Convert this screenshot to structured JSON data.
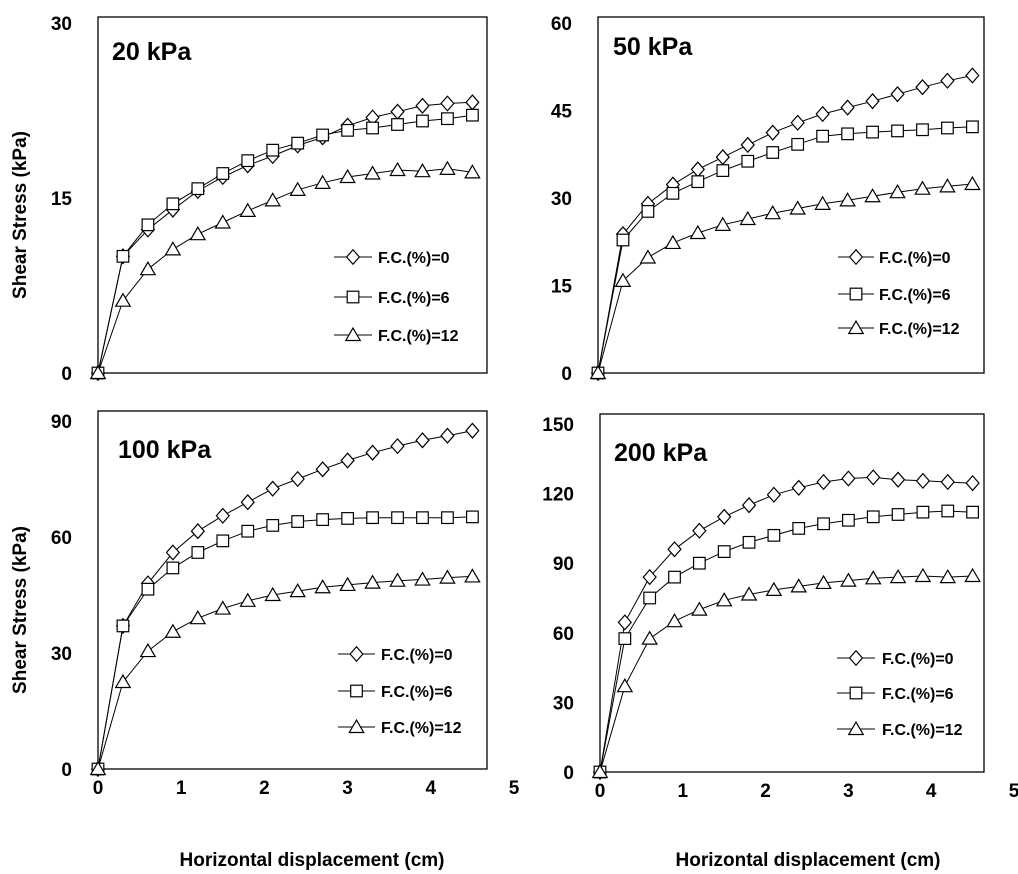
{
  "figure": {
    "ylabel": "Shear Stress (kPa)",
    "xlabel": "Horizontal displacement (cm)",
    "xticks": [
      "0",
      "1",
      "2",
      "3",
      "4",
      "5"
    ]
  },
  "chart_data": [
    {
      "type": "line",
      "title": "20 kPa",
      "ylabel": "Shear Stress (kPa)",
      "xlabel": "Horizontal displacement (cm)",
      "xlim": [
        0,
        5
      ],
      "ylim": [
        0,
        30
      ],
      "yticks": [
        0,
        15,
        30
      ],
      "ytick_labels": [
        "0",
        "15",
        "30"
      ],
      "x": [
        0,
        0.3,
        0.6,
        0.9,
        1.2,
        1.5,
        1.8,
        2.1,
        2.4,
        2.7,
        3.0,
        3.3,
        3.6,
        3.9,
        4.2,
        4.5
      ],
      "series": [
        {
          "name": "F.C.(%)=0",
          "marker": "diamond",
          "values": [
            0,
            10.0,
            12.3,
            14.0,
            15.6,
            16.8,
            17.8,
            18.6,
            19.5,
            20.2,
            21.2,
            21.9,
            22.4,
            22.9,
            23.1,
            23.2
          ]
        },
        {
          "name": "F.C.(%)=6",
          "marker": "square",
          "values": [
            0,
            10.0,
            12.7,
            14.5,
            15.8,
            17.1,
            18.2,
            19.1,
            19.7,
            20.4,
            20.8,
            21.0,
            21.3,
            21.6,
            21.8,
            22.1
          ]
        },
        {
          "name": "F.C.(%)=12",
          "marker": "triangle",
          "values": [
            0,
            6.2,
            8.9,
            10.6,
            11.9,
            12.9,
            13.9,
            14.8,
            15.7,
            16.3,
            16.8,
            17.1,
            17.4,
            17.3,
            17.5,
            17.2
          ]
        }
      ],
      "legend_position": "center-right",
      "grid": false
    },
    {
      "type": "line",
      "title": "50 kPa",
      "ylabel": "",
      "xlabel": "",
      "xlim": [
        0,
        5
      ],
      "ylim": [
        0,
        60
      ],
      "yticks": [
        0,
        15,
        30,
        45,
        60
      ],
      "ytick_labels": [
        "0",
        "15",
        "30",
        "45",
        "60"
      ],
      "x": [
        0,
        0.3,
        0.6,
        0.9,
        1.2,
        1.5,
        1.8,
        2.1,
        2.4,
        2.7,
        3.0,
        3.3,
        3.6,
        3.9,
        4.2,
        4.5
      ],
      "series": [
        {
          "name": "F.C.(%)=0",
          "marker": "diamond",
          "values": [
            0,
            23.8,
            29.0,
            32.3,
            34.9,
            37.0,
            39.1,
            41.2,
            42.9,
            44.4,
            45.5,
            46.6,
            47.8,
            49.0,
            50.1,
            51.0
          ]
        },
        {
          "name": "F.C.(%)=6",
          "marker": "square",
          "values": [
            0,
            22.8,
            27.7,
            30.8,
            32.8,
            34.7,
            36.3,
            37.8,
            39.2,
            40.6,
            41.0,
            41.3,
            41.5,
            41.7,
            42.0,
            42.2
          ]
        },
        {
          "name": "F.C.(%)=12",
          "marker": "triangle",
          "values": [
            0,
            15.8,
            19.8,
            22.3,
            24.0,
            25.4,
            26.4,
            27.4,
            28.2,
            29.0,
            29.6,
            30.3,
            31.0,
            31.6,
            32.0,
            32.4
          ]
        }
      ],
      "legend_position": "center-right",
      "grid": false
    },
    {
      "type": "line",
      "title": "100 kPa",
      "ylabel": "Shear Stress (kPa)",
      "xlabel": "Horizontal displacement (cm)",
      "xlim": [
        0,
        5
      ],
      "ylim": [
        0,
        90
      ],
      "yticks": [
        0,
        30,
        60,
        90
      ],
      "ytick_labels": [
        "0",
        "30",
        "60",
        "90"
      ],
      "x": [
        0,
        0.3,
        0.6,
        0.9,
        1.2,
        1.5,
        1.8,
        2.1,
        2.4,
        2.7,
        3.0,
        3.3,
        3.6,
        3.9,
        4.2,
        4.5
      ],
      "series": [
        {
          "name": "F.C.(%)=0",
          "marker": "diamond",
          "values": [
            0,
            37.0,
            48.0,
            56.0,
            61.5,
            65.5,
            69.0,
            72.5,
            75.0,
            77.5,
            79.8,
            81.8,
            83.5,
            85.0,
            86.2,
            87.5
          ]
        },
        {
          "name": "F.C.(%)=6",
          "marker": "square",
          "values": [
            0,
            37.0,
            46.5,
            52.0,
            56.0,
            59.0,
            61.5,
            63.0,
            64.0,
            64.5,
            64.8,
            65.0,
            65.0,
            65.0,
            65.0,
            65.2
          ]
        },
        {
          "name": "F.C.(%)=12",
          "marker": "triangle",
          "values": [
            0,
            22.5,
            30.5,
            35.5,
            39.0,
            41.5,
            43.5,
            45.0,
            46.0,
            47.0,
            47.6,
            48.2,
            48.7,
            49.0,
            49.5,
            49.8
          ]
        }
      ],
      "legend_position": "bottom-right",
      "grid": false
    },
    {
      "type": "line",
      "title": "200 kPa",
      "ylabel": "",
      "xlabel": "Horizontal displacement (cm)",
      "xlim": [
        0,
        5
      ],
      "ylim": [
        0,
        150
      ],
      "yticks": [
        0,
        30,
        60,
        90,
        120,
        150
      ],
      "ytick_labels": [
        "0",
        "30",
        "60",
        "90",
        "120",
        "150"
      ],
      "x": [
        0,
        0.3,
        0.6,
        0.9,
        1.2,
        1.5,
        1.8,
        2.1,
        2.4,
        2.7,
        3.0,
        3.3,
        3.6,
        3.9,
        4.2,
        4.5
      ],
      "series": [
        {
          "name": "F.C.(%)=0",
          "marker": "diamond",
          "values": [
            0,
            64.5,
            84.0,
            96.0,
            104.0,
            110.0,
            115.0,
            119.5,
            122.5,
            125.0,
            126.5,
            127.0,
            126.0,
            125.5,
            125.0,
            124.5
          ]
        },
        {
          "name": "F.C.(%)=6",
          "marker": "square",
          "values": [
            0,
            57.5,
            75.0,
            84.0,
            90.0,
            95.0,
            99.0,
            102.0,
            105.0,
            107.0,
            108.5,
            110.0,
            111.0,
            112.0,
            112.5,
            112.0
          ]
        },
        {
          "name": "F.C.(%)=12",
          "marker": "triangle",
          "values": [
            0,
            37.0,
            57.5,
            65.0,
            70.0,
            74.0,
            76.5,
            78.5,
            80.0,
            81.5,
            82.5,
            83.5,
            84.0,
            84.5,
            84.0,
            84.5
          ]
        }
      ],
      "legend_position": "bottom-right",
      "grid": false
    }
  ]
}
